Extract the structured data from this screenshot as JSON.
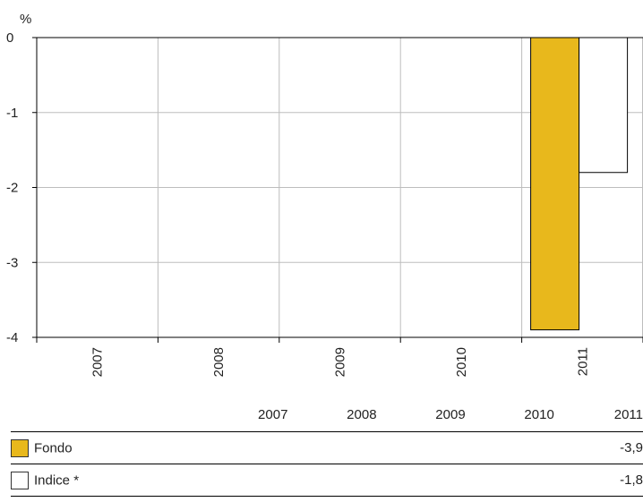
{
  "chart_data": {
    "type": "bar",
    "unit_label": "%",
    "categories": [
      "2007",
      "2008",
      "2009",
      "2010",
      "2011"
    ],
    "series": [
      {
        "name": "Fondo",
        "color": "#E8B81C",
        "values": [
          null,
          null,
          null,
          null,
          -3.9
        ]
      },
      {
        "name": "Indice *",
        "color": "#FFFFFF",
        "values": [
          null,
          null,
          null,
          null,
          -1.8
        ]
      }
    ],
    "yticks": [
      "0",
      "-1",
      "-2",
      "-3",
      "-4"
    ],
    "ylim": [
      -4,
      0
    ],
    "grid": true,
    "legend": "table-below"
  },
  "table": {
    "headers": [
      "2007",
      "2008",
      "2009",
      "2010",
      "2011"
    ],
    "rows": [
      {
        "label": "Fondo",
        "color": "#E8B81C",
        "values": [
          "",
          "",
          "",
          "",
          "-3,9"
        ]
      },
      {
        "label": "Indice *",
        "color": "#FFFFFF",
        "values": [
          "",
          "",
          "",
          "",
          "-1,8"
        ]
      }
    ]
  }
}
